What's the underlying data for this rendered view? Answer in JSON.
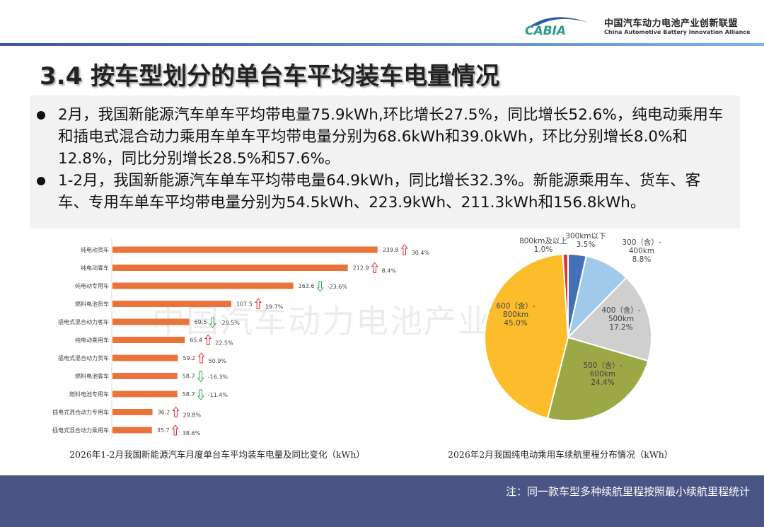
{
  "header": {
    "logo_text": "CABIA",
    "org_name_cn": "中国汽车动力电池产业创新联盟",
    "org_name_en": "China Automotive Battery Innovation Alliance"
  },
  "title": "3.4 按车型划分的单台车平均装车电量情况",
  "bullets": [
    "2月，我国新能源汽车单车平均带电量75.9kWh,环比增长27.5%，同比增长52.6%，纯电动乘用车和插电式混合动力乘用车单车平均带电量分别为68.6kWh和39.0kWh，环比分别增长8.0%和12.8%，同比分别增长28.5%和57.6%。",
    "1-2月，我国新能源汽车单车平均带电量64.9kWh，同比增长32.3%。新能源乘用车、货车、客车、专用车单车平均带电量分别为54.5kWh、223.9kWh、211.3kWh和156.8kWh。"
  ],
  "watermark": "中国汽车动力电池产业创新联盟",
  "chart_data": [
    {
      "type": "bar",
      "orientation": "horizontal",
      "title": "2026年1-2月我国新能源汽车月度单台车平均装车电量及同比变化（kWh）",
      "categories": [
        "纯电动货车",
        "纯电动客车",
        "纯电动专用车",
        "燃料电池货车",
        "插电式混合动力客车",
        "纯电动乘用车",
        "插电式混合动力货车",
        "燃料电池客车",
        "燃料电池专用车",
        "插电式混合动力专用车",
        "插电式混合动力乘用车"
      ],
      "values": [
        239.8,
        212.9,
        163.6,
        107.5,
        69.5,
        65.4,
        59.2,
        58.7,
        58.7,
        36.2,
        35.7
      ],
      "value_labels": [
        "239.8",
        "212.9",
        "163.6",
        "107.5",
        "69.5",
        "65.4",
        "59.2",
        "58.7",
        "58.7",
        "36.2",
        "35.7"
      ],
      "yoy_change": [
        "30.4%",
        "8.4%",
        "-23.6%",
        "19.7%",
        "-29.5%",
        "22.5%",
        "50.9%",
        "-16.3%",
        "-11.4%",
        "29.8%",
        "38.6%"
      ],
      "yoy_direction": [
        "up",
        "up",
        "down",
        "up",
        "down",
        "up",
        "up",
        "down",
        "down",
        "up",
        "up"
      ],
      "bar_color": "#e8743b",
      "up_color": "#e0282e",
      "down_color": "#2ca84a",
      "grid": false
    },
    {
      "type": "pie",
      "title": "2026年2月我国纯电动乘用车续航里程分布情况（kWh）",
      "slices": [
        {
          "label": "300km以下",
          "value": 3.5,
          "pct": "3.5%",
          "color": "#4470b8"
        },
        {
          "label": "300（含）-400km",
          "value": 8.8,
          "pct": "8.8%",
          "color": "#a1c9ea"
        },
        {
          "label": "400（含）-500km",
          "value": 17.2,
          "pct": "17.2%",
          "color": "#cfcfcf"
        },
        {
          "label": "500（含）-600km",
          "value": 24.4,
          "pct": "24.4%",
          "color": "#9aa846"
        },
        {
          "label": "600（含）-800km",
          "value": 45.0,
          "pct": "45.0%",
          "color": "#fbbd2c"
        },
        {
          "label": "800km及以上",
          "value": 1.0,
          "pct": "1.0%",
          "color": "#d9382c"
        }
      ]
    }
  ],
  "footer": {
    "note": "注：同一款车型多种续航里程按照最小续航里程统计"
  }
}
